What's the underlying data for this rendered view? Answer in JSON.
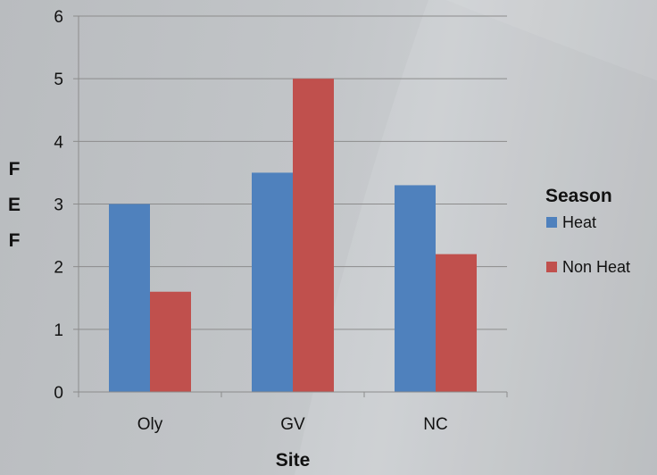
{
  "chart_data": {
    "type": "bar",
    "categories": [
      "Oly",
      "GV",
      "NC"
    ],
    "series": [
      {
        "name": "Heat",
        "values": [
          3.0,
          3.5,
          3.3
        ],
        "color": "#4f81bd"
      },
      {
        "name": "Non Heat",
        "values": [
          1.6,
          5.0,
          2.2
        ],
        "color": "#c0504d"
      }
    ],
    "xlabel": "Site",
    "ylabel": "FEF",
    "ylim": [
      0,
      6
    ],
    "yticks": [
      "0",
      "1",
      "2",
      "3",
      "4",
      "5",
      "6"
    ],
    "grid": true,
    "legend": {
      "title": "Season",
      "position": "right"
    }
  }
}
